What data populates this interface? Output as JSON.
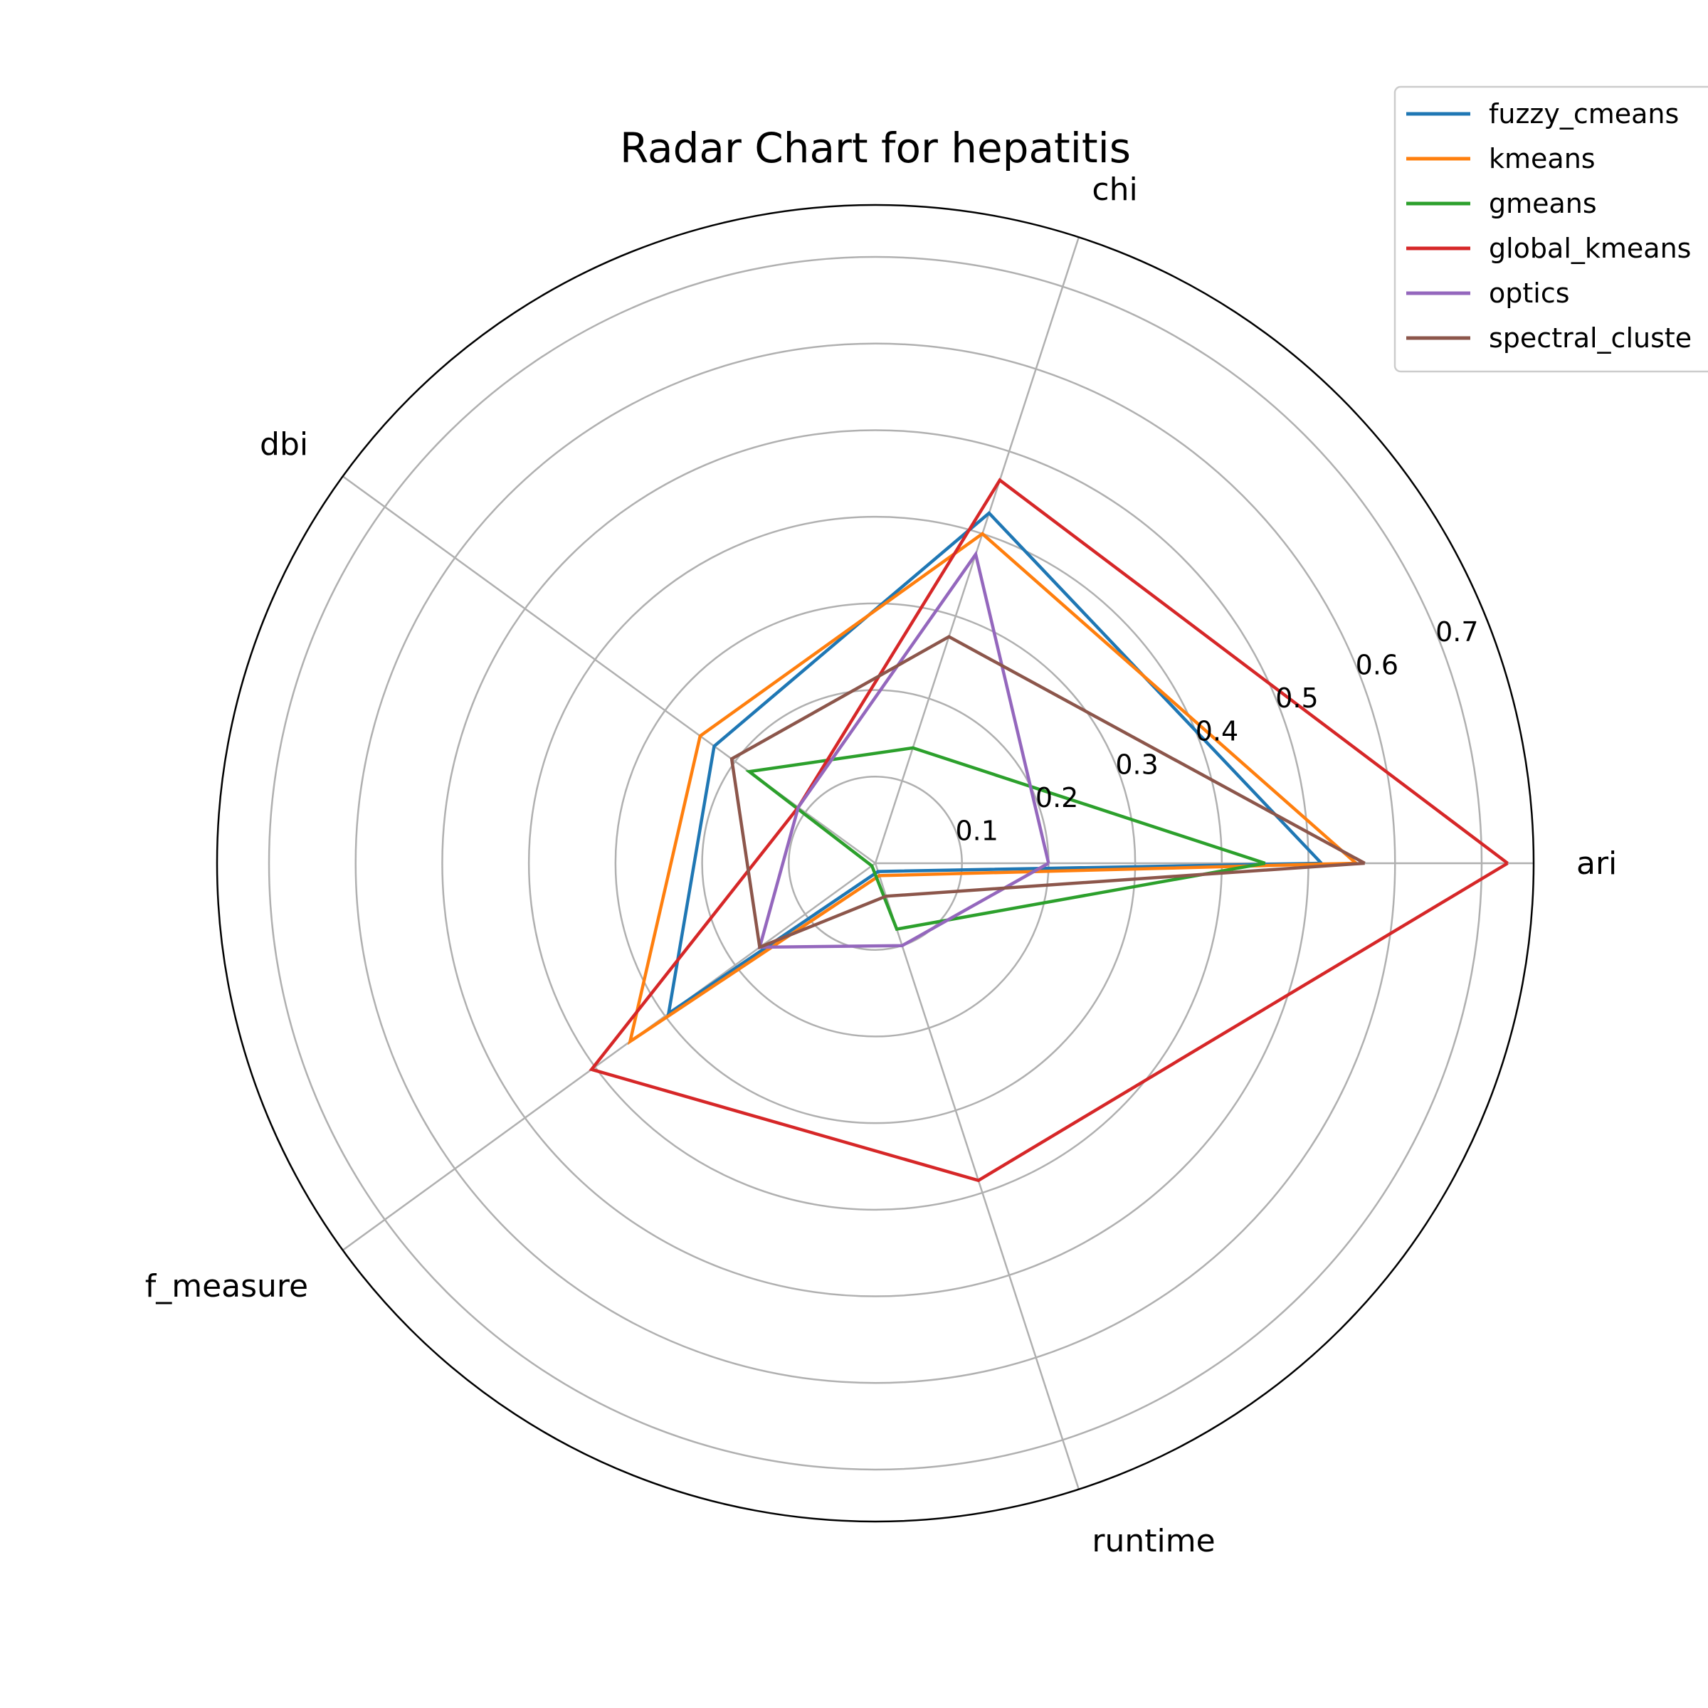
{
  "chart_data": {
    "type": "radar",
    "title": "Radar Chart for hepatitis",
    "axes": [
      "ari",
      "chi",
      "dbi",
      "f_measure",
      "runtime"
    ],
    "rlim": [
      0,
      0.76
    ],
    "rticks": [
      "0.1",
      "0.2",
      "0.3",
      "0.4",
      "0.5",
      "0.6",
      "0.7"
    ],
    "grid": true,
    "legend_position": "top-right",
    "series": [
      {
        "name": "fuzzy_cmeans",
        "color": "#1f77b4",
        "values": [
          0.515,
          0.425,
          0.23,
          0.295,
          0.01
        ]
      },
      {
        "name": "kmeans",
        "color": "#ff7f0e",
        "values": [
          0.555,
          0.4,
          0.25,
          0.35,
          0.015
        ]
      },
      {
        "name": "gmeans",
        "color": "#2ca02c",
        "values": [
          0.45,
          0.14,
          0.18,
          0.005,
          0.08
        ]
      },
      {
        "name": "global_kmeans",
        "color": "#d62728",
        "values": [
          0.73,
          0.465,
          0.11,
          0.405,
          0.385
        ]
      },
      {
        "name": "optics",
        "color": "#9467bd",
        "values": [
          0.2,
          0.375,
          0.11,
          0.165,
          0.1
        ]
      },
      {
        "name": "spectral_clustering",
        "color": "#8c564b",
        "values": [
          0.565,
          0.275,
          0.205,
          0.165,
          0.04
        ]
      }
    ]
  },
  "legend": {
    "items": [
      "fuzzy_cmeans",
      "kmeans",
      "gmeans",
      "global_kmeans",
      "optics",
      "spectral_cluste"
    ]
  }
}
